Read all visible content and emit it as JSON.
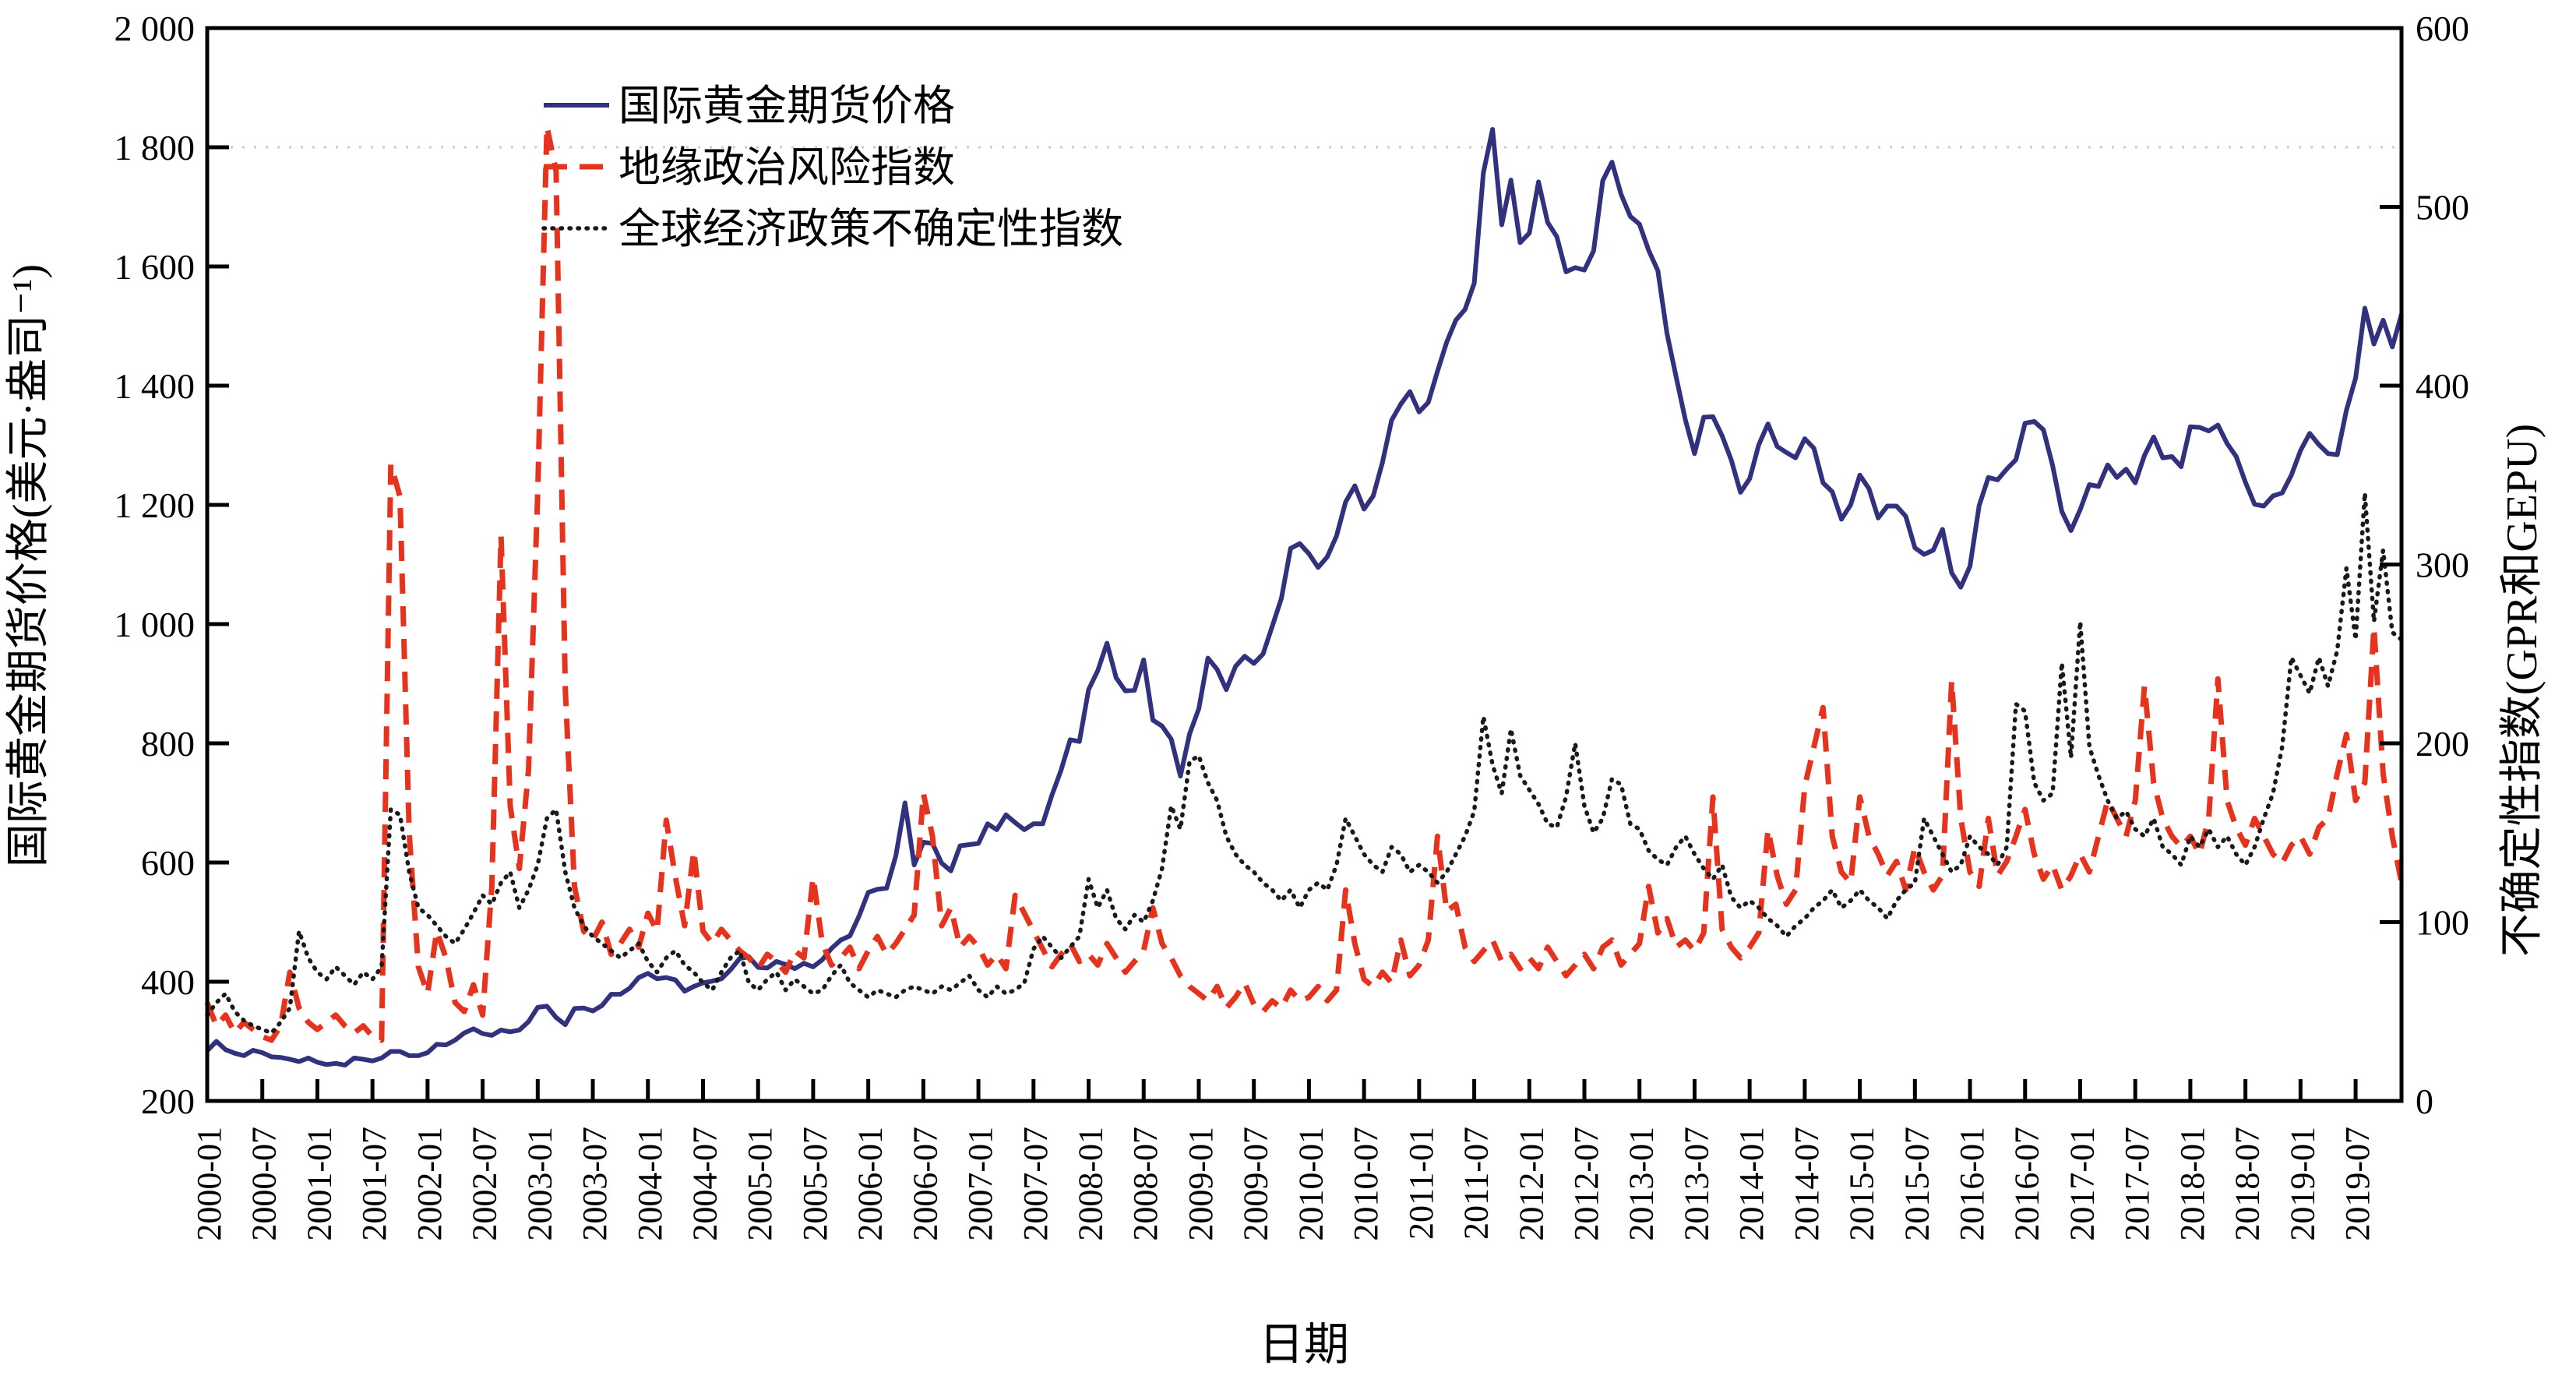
{
  "figure": {
    "background_color": "#ffffff",
    "axis_color": "#000000"
  },
  "axes": {
    "left_tick_labels": [
      "2 000",
      "1 800",
      "1 600",
      "1 400",
      "1 200",
      "1 000",
      "800",
      "600",
      "400",
      "200"
    ],
    "right_tick_labels": [
      "600",
      "500",
      "400",
      "300",
      "200",
      "100",
      "0"
    ],
    "x_tick_labels": [
      "2000-01",
      "2000-07",
      "2001-01",
      "2001-07",
      "2002-01",
      "2002-07",
      "2003-01",
      "2003-07",
      "2004-01",
      "2004-07",
      "2005-01",
      "2005-07",
      "2006-01",
      "2006-07",
      "2007-01",
      "2007-07",
      "2008-01",
      "2008-07",
      "2009-01",
      "2009-07",
      "2010-01",
      "2010-07",
      "2011-01",
      "2011-07",
      "2012-01",
      "2012-07",
      "2013-01",
      "2013-07",
      "2014-01",
      "2014-07",
      "2015-01",
      "2015-07",
      "2016-01",
      "2016-07",
      "2017-01",
      "2017-07",
      "2018-01",
      "2018-07",
      "2019-01",
      "2019-07"
    ]
  },
  "legend": {
    "items": [
      {
        "label": "国际黄金期货价格"
      },
      {
        "label": "地缘政治风险指数"
      },
      {
        "label": "全球经济政策不确定性指数"
      }
    ]
  },
  "chart_data": {
    "type": "line",
    "title": "",
    "xlabel": "日期",
    "ylabel_left": "国际黄金期货价格(美元·盎司⁻¹)",
    "ylabel_right": "不确定性指数(GPR和GEPU)",
    "x_start": "2000-01",
    "x_end": "2019-12",
    "months": 240,
    "ylim_left": [
      200,
      2000
    ],
    "ylim_right": [
      0,
      600
    ],
    "grid": "single faint dotted line at left value 1800",
    "gridline": {
      "axis": "left",
      "value": 1800
    },
    "legend_position": "upper-left-inside",
    "series": [
      {
        "name": "国际黄金期货价格",
        "axis": "left",
        "color": "#32317e",
        "line_style": "solid",
        "values": [
          284,
          300,
          286,
          280,
          276,
          285,
          281,
          274,
          273,
          270,
          266,
          272,
          265,
          261,
          263,
          260,
          272,
          270,
          267,
          272,
          283,
          283,
          276,
          276,
          281,
          295,
          294,
          302,
          314,
          321,
          313,
          310,
          319,
          316,
          319,
          333,
          357,
          359,
          340,
          328,
          355,
          356,
          351,
          360,
          379,
          379,
          389,
          407,
          414,
          405,
          407,
          403,
          384,
          392,
          398,
          401,
          405,
          420,
          439,
          442,
          424,
          423,
          434,
          429,
          422,
          431,
          425,
          437,
          456,
          470,
          477,
          510,
          550,
          555,
          557,
          611,
          700,
          596,
          634,
          632,
          599,
          586,
          628,
          630,
          632,
          665,
          655,
          680,
          667,
          655,
          665,
          665,
          713,
          755,
          806,
          803,
          890,
          922,
          968,
          910,
          888,
          889,
          940,
          839,
          829,
          807,
          745,
          816,
          858,
          943,
          924,
          890,
          929,
          946,
          934,
          950,
          996,
          1043,
          1127,
          1135,
          1118,
          1095,
          1113,
          1148,
          1205,
          1232,
          1193,
          1215,
          1271,
          1342,
          1369,
          1390,
          1356,
          1372,
          1424,
          1473,
          1510,
          1528,
          1572,
          1757,
          1830,
          1670,
          1745,
          1640,
          1656,
          1742,
          1674,
          1650,
          1591,
          1598,
          1594,
          1626,
          1744,
          1775,
          1721,
          1684,
          1671,
          1627,
          1593,
          1487,
          1414,
          1343,
          1286,
          1347,
          1348,
          1316,
          1275,
          1221,
          1244,
          1301,
          1336,
          1298,
          1288,
          1279,
          1311,
          1295,
          1237,
          1222,
          1176,
          1200,
          1250,
          1227,
          1178,
          1198,
          1198,
          1181,
          1128,
          1117,
          1124,
          1159,
          1086,
          1062,
          1097,
          1199,
          1246,
          1242,
          1260,
          1276,
          1337,
          1340,
          1326,
          1266,
          1189,
          1157,
          1192,
          1234,
          1231,
          1267,
          1246,
          1260,
          1237,
          1283,
          1314,
          1279,
          1281,
          1264,
          1331,
          1330,
          1324,
          1334,
          1303,
          1281,
          1238,
          1201,
          1198,
          1215,
          1220,
          1250,
          1291,
          1320,
          1301,
          1286,
          1284,
          1359,
          1413,
          1530,
          1470,
          1510,
          1465,
          1520
        ]
      },
      {
        "name": "地缘政治风险指数",
        "axis": "right",
        "color": "#e6331e",
        "line_style": "dashed",
        "values": [
          55,
          42,
          48,
          38,
          44,
          40,
          36,
          34,
          42,
          72,
          52,
          44,
          40,
          44,
          48,
          42,
          38,
          42,
          36,
          34,
          356,
          338,
          150,
          75,
          60,
          95,
          80,
          55,
          50,
          65,
          48,
          120,
          316,
          165,
          130,
          185,
          340,
          545,
          520,
          230,
          120,
          95,
          90,
          100,
          82,
          88,
          96,
          86,
          105,
          95,
          157,
          125,
          98,
          140,
          95,
          88,
          96,
          90,
          84,
          80,
          74,
          82,
          78,
          72,
          84,
          80,
          125,
          88,
          76,
          80,
          86,
          74,
          84,
          92,
          82,
          88,
          96,
          104,
          172,
          148,
          98,
          108,
          86,
          92,
          86,
          76,
          82,
          74,
          115,
          105,
          95,
          85,
          75,
          82,
          88,
          78,
          82,
          76,
          88,
          80,
          72,
          78,
          84,
          108,
          88,
          80,
          70,
          64,
          60,
          56,
          64,
          52,
          58,
          66,
          54,
          50,
          56,
          52,
          62,
          56,
          58,
          64,
          56,
          62,
          118,
          88,
          68,
          64,
          72,
          66,
          90,
          70,
          76,
          90,
          148,
          106,
          110,
          86,
          78,
          84,
          90,
          78,
          82,
          74,
          80,
          74,
          86,
          78,
          70,
          76,
          82,
          74,
          86,
          90,
          76,
          82,
          88,
          120,
          94,
          102,
          86,
          90,
          84,
          94,
          170,
          96,
          86,
          80,
          86,
          94,
          152,
          126,
          110,
          118,
          176,
          198,
          220,
          148,
          128,
          122,
          170,
          148,
          138,
          126,
          134,
          118,
          142,
          128,
          118,
          126,
          235,
          158,
          128,
          120,
          158,
          126,
          134,
          148,
          163,
          138,
          124,
          132,
          118,
          126,
          138,
          128,
          148,
          168,
          158,
          148,
          168,
          232,
          178,
          158,
          148,
          142,
          148,
          138,
          158,
          236,
          168,
          153,
          143,
          158,
          148,
          138,
          133,
          143,
          148,
          138,
          153,
          158,
          183,
          205,
          168,
          178,
          265,
          183,
          148,
          122
        ]
      },
      {
        "name": "全球经济政策不确定性指数",
        "axis": "right",
        "color": "#1a1a1a",
        "line_style": "dotted",
        "values": [
          48,
          55,
          60,
          50,
          45,
          42,
          40,
          38,
          44,
          52,
          95,
          80,
          72,
          68,
          75,
          70,
          65,
          72,
          68,
          75,
          163,
          160,
          128,
          108,
          104,
          98,
          92,
          88,
          96,
          105,
          115,
          110,
          122,
          128,
          108,
          118,
          132,
          158,
          163,
          128,
          108,
          98,
          92,
          88,
          84,
          80,
          84,
          88,
          78,
          72,
          80,
          84,
          76,
          72,
          66,
          62,
          72,
          80,
          84,
          66,
          62,
          68,
          72,
          62,
          68,
          64,
          60,
          62,
          70,
          76,
          66,
          62,
          58,
          62,
          60,
          58,
          62,
          64,
          62,
          60,
          64,
          62,
          66,
          70,
          62,
          58,
          64,
          60,
          62,
          66,
          85,
          92,
          86,
          80,
          86,
          92,
          124,
          108,
          118,
          102,
          96,
          104,
          100,
          112,
          130,
          165,
          152,
          190,
          193,
          178,
          168,
          148,
          138,
          132,
          128,
          122,
          118,
          112,
          118,
          108,
          118,
          122,
          118,
          132,
          158,
          148,
          138,
          132,
          128,
          142,
          138,
          128,
          132,
          128,
          122,
          128,
          138,
          148,
          162,
          215,
          188,
          172,
          208,
          182,
          174,
          166,
          155,
          153,
          170,
          200,
          165,
          150,
          158,
          180,
          177,
          155,
          152,
          140,
          135,
          132,
          142,
          148,
          138,
          130,
          124,
          132,
          114,
          108,
          112,
          108,
          102,
          98,
          92,
          98,
          102,
          108,
          112,
          118,
          108,
          112,
          118,
          112,
          108,
          102,
          112,
          118,
          122,
          158,
          148,
          138,
          128,
          132,
          148,
          142,
          138,
          132,
          142,
          222,
          218,
          178,
          168,
          172,
          245,
          192,
          268,
          198,
          182,
          168,
          158,
          162,
          152,
          148,
          158,
          142,
          138,
          132,
          148,
          142,
          152,
          142,
          148,
          138,
          132,
          142,
          158,
          172,
          198,
          248,
          238,
          228,
          248,
          232,
          252,
          298,
          258,
          340,
          268,
          308,
          262,
          258
        ]
      }
    ]
  }
}
